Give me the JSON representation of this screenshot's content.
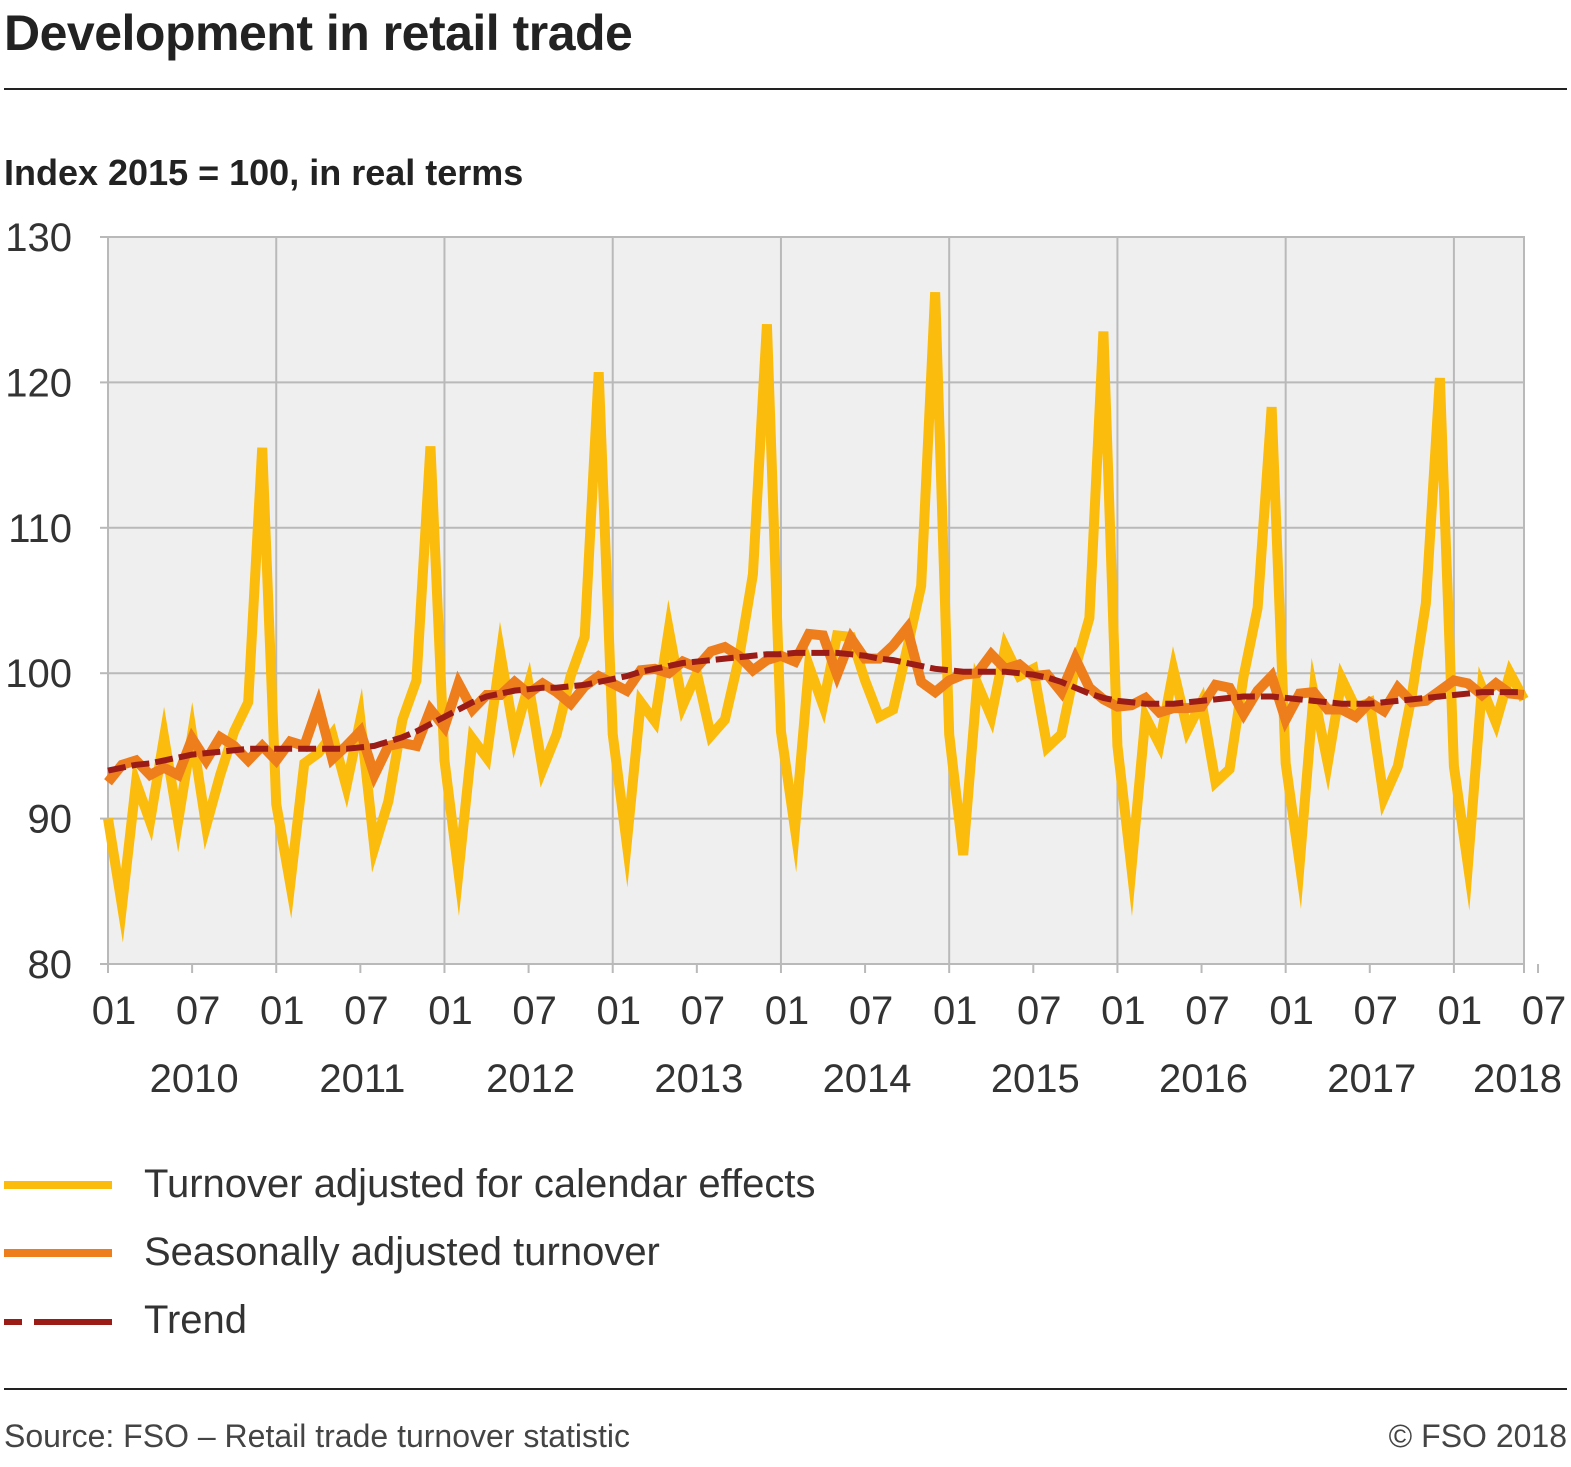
{
  "header": {
    "title": "Development in retail trade",
    "subtitle": "Index 2015 = 100, in real terms"
  },
  "footer": {
    "source": "Source: FSO – Retail trade turnover statistic",
    "copyright": "© FSO 2018"
  },
  "colors": {
    "plot_background": "#efefef",
    "grid": "#b9b9b9",
    "turnover": "#fbbc0d",
    "seasonal": "#ee7d1c",
    "trend": "#9b1b16"
  },
  "chart_data": {
    "type": "line",
    "title": "Development in retail trade",
    "subtitle": "Index 2015 = 100, in real terms",
    "ylim": [
      80,
      130
    ],
    "yticks": [
      80,
      90,
      100,
      110,
      120,
      130
    ],
    "month_tick_labels": [
      "01",
      "07",
      "01",
      "07",
      "01",
      "07",
      "01",
      "07",
      "01",
      "07",
      "01",
      "07",
      "01",
      "07",
      "01",
      "07",
      "01",
      "07",
      "01"
    ],
    "year_labels": [
      "2010",
      "2011",
      "2012",
      "2013",
      "2014",
      "2015",
      "2016",
      "2017",
      "2018"
    ],
    "grid": true,
    "x_start": "2010-01",
    "x_end": "2018-06",
    "legend_position": "bottom",
    "series": [
      {
        "name": "Turnover adjusted for calendar effects",
        "values": [
          90.0,
          84.0,
          92.5,
          89.8,
          95.6,
          89.8,
          95.8,
          89.5,
          93.0,
          96.0,
          98.0,
          115.5,
          91.0,
          85.5,
          93.8,
          94.5,
          95.8,
          92.2,
          96.8,
          88.0,
          91.2,
          96.8,
          99.5,
          115.6,
          94.0,
          86.3,
          95.5,
          94.2,
          101.3,
          95.7,
          99.2,
          93.4,
          95.8,
          99.8,
          102.5,
          120.7,
          95.8,
          88.3,
          98.0,
          96.7,
          103.0,
          97.8,
          100.0,
          95.7,
          96.8,
          101.0,
          106.8,
          124.0,
          96.0,
          89.3,
          100.5,
          97.8,
          102.6,
          102.5,
          99.5,
          97.0,
          97.5,
          101.7,
          106.0,
          126.2,
          95.8,
          87.5,
          99.3,
          97.0,
          101.8,
          99.8,
          100.3,
          94.9,
          95.8,
          100.4,
          103.8,
          123.5,
          95.0,
          86.6,
          97.0,
          95.1,
          100.2,
          96.1,
          98.0,
          92.5,
          93.4,
          99.8,
          104.5,
          118.3,
          93.8,
          86.9,
          98.6,
          93.8,
          99.6,
          97.6,
          98.0,
          91.4,
          93.6,
          98.5,
          104.8,
          120.3,
          93.6,
          86.8,
          99.0,
          96.6,
          100.0,
          98.2
        ]
      },
      {
        "name": "Seasonally adjusted turnover",
        "values": [
          92.5,
          93.7,
          94.0,
          93.0,
          93.5,
          93.0,
          95.5,
          94.0,
          95.6,
          95.0,
          94.0,
          95.0,
          94.0,
          95.3,
          95.0,
          97.8,
          94.1,
          95.0,
          96.0,
          93.0,
          95.0,
          95.2,
          95.0,
          97.5,
          96.3,
          99.3,
          97.5,
          98.5,
          98.5,
          99.4,
          98.6,
          99.3,
          98.7,
          97.9,
          99.1,
          99.8,
          99.3,
          98.8,
          100.2,
          100.3,
          100.0,
          100.8,
          100.4,
          101.5,
          101.8,
          101.2,
          100.2,
          100.9,
          101.2,
          100.8,
          102.7,
          102.6,
          99.9,
          102.4,
          101.0,
          101.0,
          101.9,
          103.1,
          99.4,
          98.7,
          99.5,
          99.9,
          100.0,
          101.3,
          100.3,
          100.6,
          99.8,
          99.9,
          98.7,
          101.0,
          99.0,
          98.2,
          97.7,
          97.8,
          98.3,
          97.3,
          97.6,
          97.6,
          97.7,
          99.2,
          99.0,
          97.2,
          98.8,
          99.8,
          96.8,
          98.6,
          98.7,
          97.5,
          97.5,
          97.0,
          98.0,
          97.4,
          99.0,
          98.0,
          98.1,
          98.8,
          99.5,
          99.3,
          98.5,
          99.3,
          98.6,
          98.5
        ]
      },
      {
        "name": "Trend",
        "values": [
          93.3,
          93.5,
          93.7,
          93.8,
          94.0,
          94.2,
          94.4,
          94.5,
          94.6,
          94.7,
          94.8,
          94.8,
          94.8,
          94.8,
          94.8,
          94.8,
          94.8,
          94.8,
          94.9,
          95.0,
          95.3,
          95.6,
          96.0,
          96.5,
          97.0,
          97.5,
          98.0,
          98.4,
          98.6,
          98.8,
          98.9,
          99.0,
          99.0,
          99.1,
          99.2,
          99.4,
          99.6,
          99.8,
          100.1,
          100.3,
          100.5,
          100.7,
          100.8,
          100.9,
          101.0,
          101.1,
          101.2,
          101.3,
          101.3,
          101.4,
          101.4,
          101.4,
          101.4,
          101.3,
          101.2,
          101.0,
          100.9,
          100.7,
          100.5,
          100.3,
          100.2,
          100.1,
          100.1,
          100.1,
          100.1,
          100.0,
          99.9,
          99.7,
          99.4,
          99.0,
          98.6,
          98.3,
          98.1,
          98.0,
          97.9,
          97.9,
          97.9,
          98.0,
          98.1,
          98.2,
          98.3,
          98.4,
          98.4,
          98.4,
          98.3,
          98.2,
          98.1,
          98.0,
          97.9,
          97.9,
          97.9,
          98.0,
          98.1,
          98.2,
          98.3,
          98.4,
          98.5,
          98.6,
          98.7,
          98.7,
          98.7,
          98.7
        ]
      }
    ]
  }
}
